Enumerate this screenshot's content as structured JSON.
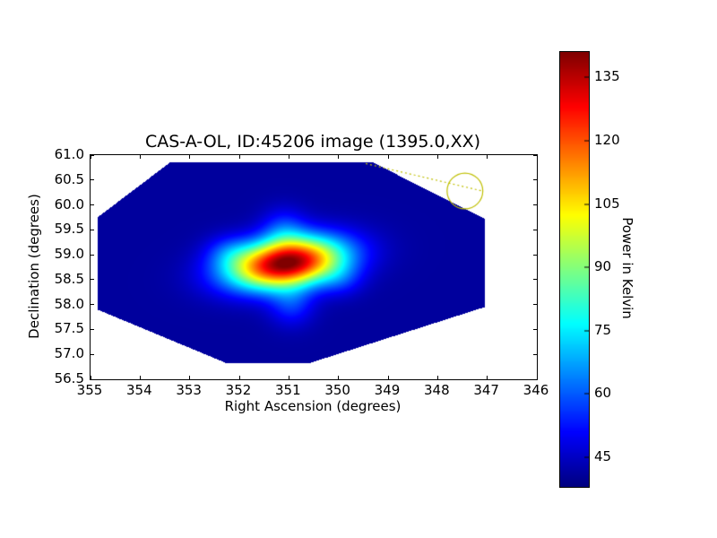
{
  "chart_data": {
    "type": "heatmap",
    "title": "CAS-A-OL, ID:45206 image (1395.0,XX)",
    "xlabel": "Right Ascension (degrees)",
    "ylabel": "Declination (degrees)",
    "xlim": [
      355,
      346
    ],
    "ylim": [
      56.5,
      61.0
    ],
    "x_tick_values": [
      355,
      354,
      353,
      352,
      351,
      350,
      349,
      348,
      347,
      346
    ],
    "x_tick_labels": [
      "355",
      "354",
      "353",
      "352",
      "351",
      "350",
      "349",
      "348",
      "347",
      "346"
    ],
    "y_tick_values": [
      61.0,
      60.5,
      60.0,
      59.5,
      59.0,
      58.5,
      58.0,
      57.5,
      57.0,
      56.5
    ],
    "y_tick_labels": [
      "61.0",
      "60.5",
      "60.0",
      "59.5",
      "59.0",
      "58.5",
      "58.0",
      "57.5",
      "57.0",
      "56.5"
    ],
    "grid": false,
    "colormap": "jet",
    "background_value": 41,
    "colorbar": {
      "label": "Power in Kelvin",
      "vmin": 38,
      "vmax": 141,
      "tick_values": [
        45,
        60,
        75,
        90,
        105,
        120,
        135
      ],
      "tick_labels": [
        "45",
        "60",
        "75",
        "90",
        "105",
        "120",
        "135"
      ]
    },
    "coverage_polygon": [
      [
        353.4,
        60.85
      ],
      [
        349.3,
        60.85
      ],
      [
        347.05,
        59.72
      ],
      [
        347.05,
        57.95
      ],
      [
        350.6,
        56.82
      ],
      [
        352.25,
        56.82
      ],
      [
        354.86,
        57.9
      ],
      [
        354.86,
        59.75
      ]
    ],
    "source_model": [
      {
        "name": "core",
        "cx": 351.05,
        "cy": 58.83,
        "amp": 101,
        "sx": 0.8,
        "sy": 0.34,
        "rot_deg": -8
      },
      {
        "name": "lobe-up",
        "cx": 351.1,
        "cy": 59.5,
        "amp": 14,
        "sx": 0.32,
        "sy": 0.3,
        "rot_deg": 0
      },
      {
        "name": "lobe-down",
        "cx": 350.95,
        "cy": 58.0,
        "amp": 14,
        "sx": 0.32,
        "sy": 0.3,
        "rot_deg": 0
      },
      {
        "name": "lobe-left",
        "cx": 352.2,
        "cy": 59.05,
        "amp": 11,
        "sx": 0.34,
        "sy": 0.24,
        "rot_deg": 0
      },
      {
        "name": "lobe-right",
        "cx": 349.95,
        "cy": 58.5,
        "amp": 9,
        "sx": 0.32,
        "sy": 0.24,
        "rot_deg": 0
      }
    ],
    "peak": {
      "ra": 351.0,
      "dec": 58.8,
      "value_kelvin": 141
    },
    "annotations": {
      "circle": {
        "ra": 347.45,
        "dec": 60.28,
        "radius_deg": 0.36,
        "color": "#bfbf00"
      },
      "dotted_line": {
        "from": [
          349.45,
          60.83
        ],
        "to": [
          347.1,
          60.28
        ],
        "color": "#bfbf00"
      }
    }
  }
}
